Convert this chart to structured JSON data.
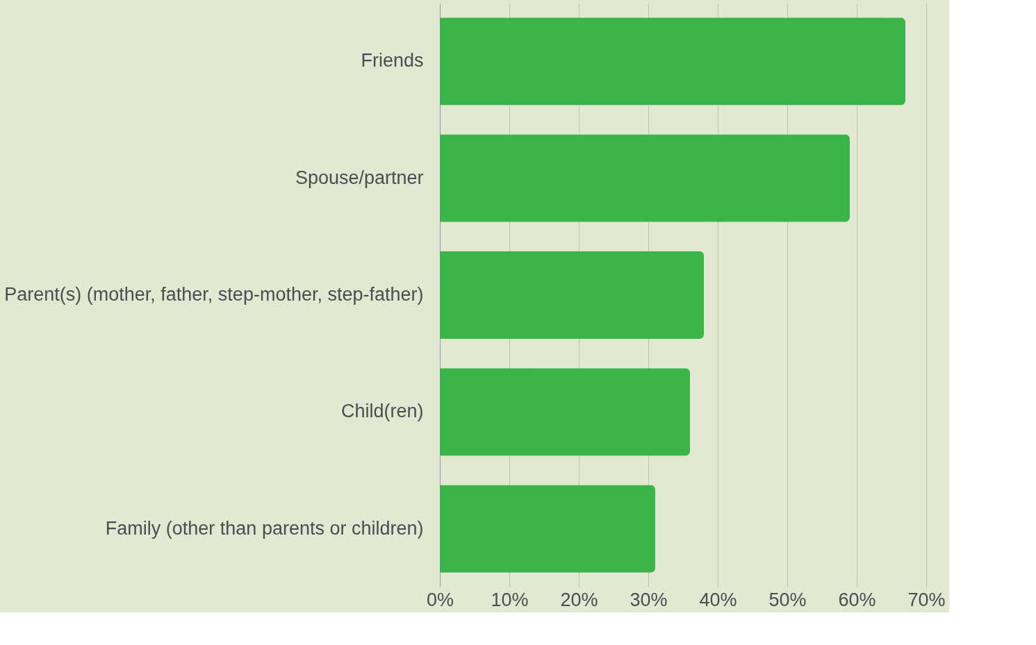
{
  "chart_data": {
    "type": "bar",
    "orientation": "horizontal",
    "categories": [
      "Friends",
      "Spouse/partner",
      "Parent(s) (mother, father, step-mother, step-father)",
      "Child(ren)",
      "Family (other than parents or children)"
    ],
    "values": [
      67,
      59,
      38,
      36,
      31
    ],
    "color": "#3bb54a",
    "xlim": [
      0,
      70
    ],
    "xticks": [
      {
        "value": 0,
        "label": "0%"
      },
      {
        "value": 10,
        "label": "10%"
      },
      {
        "value": 20,
        "label": "20%"
      },
      {
        "value": 30,
        "label": "30%"
      },
      {
        "value": 40,
        "label": "40%"
      },
      {
        "value": 50,
        "label": "50%"
      },
      {
        "value": 60,
        "label": "60%"
      },
      {
        "value": 70,
        "label": "70%"
      }
    ],
    "grid": "x"
  }
}
